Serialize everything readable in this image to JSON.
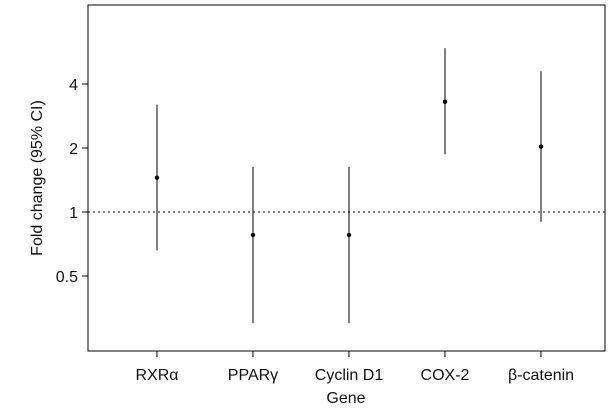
{
  "chart_data": {
    "type": "scatter",
    "subtype": "point-estimate-with-error-bars",
    "xlabel": "Gene",
    "ylabel": "Fold change (95% CI)",
    "yscale": "log2",
    "ylim": [
      0.25,
      8
    ],
    "yticks": [
      0.5,
      1,
      2,
      4
    ],
    "ytick_labels": [
      "0.5",
      "1",
      "2",
      "4"
    ],
    "reference_line": {
      "value": 1,
      "style": "dotted"
    },
    "categories": [
      "RXRα",
      "PPARγ",
      "Cyclin D1",
      "COX-2",
      "β-catenin"
    ],
    "series": [
      {
        "estimate": [
          1.45,
          0.78,
          0.78,
          3.3,
          2.03
        ],
        "ci_lower": [
          0.66,
          0.3,
          0.3,
          1.87,
          0.9
        ],
        "ci_upper": [
          3.2,
          1.63,
          1.63,
          5.9,
          4.6
        ]
      }
    ],
    "grid": false,
    "legend": "none",
    "colors": {
      "marks": "#000000",
      "axis": "#000000"
    }
  }
}
